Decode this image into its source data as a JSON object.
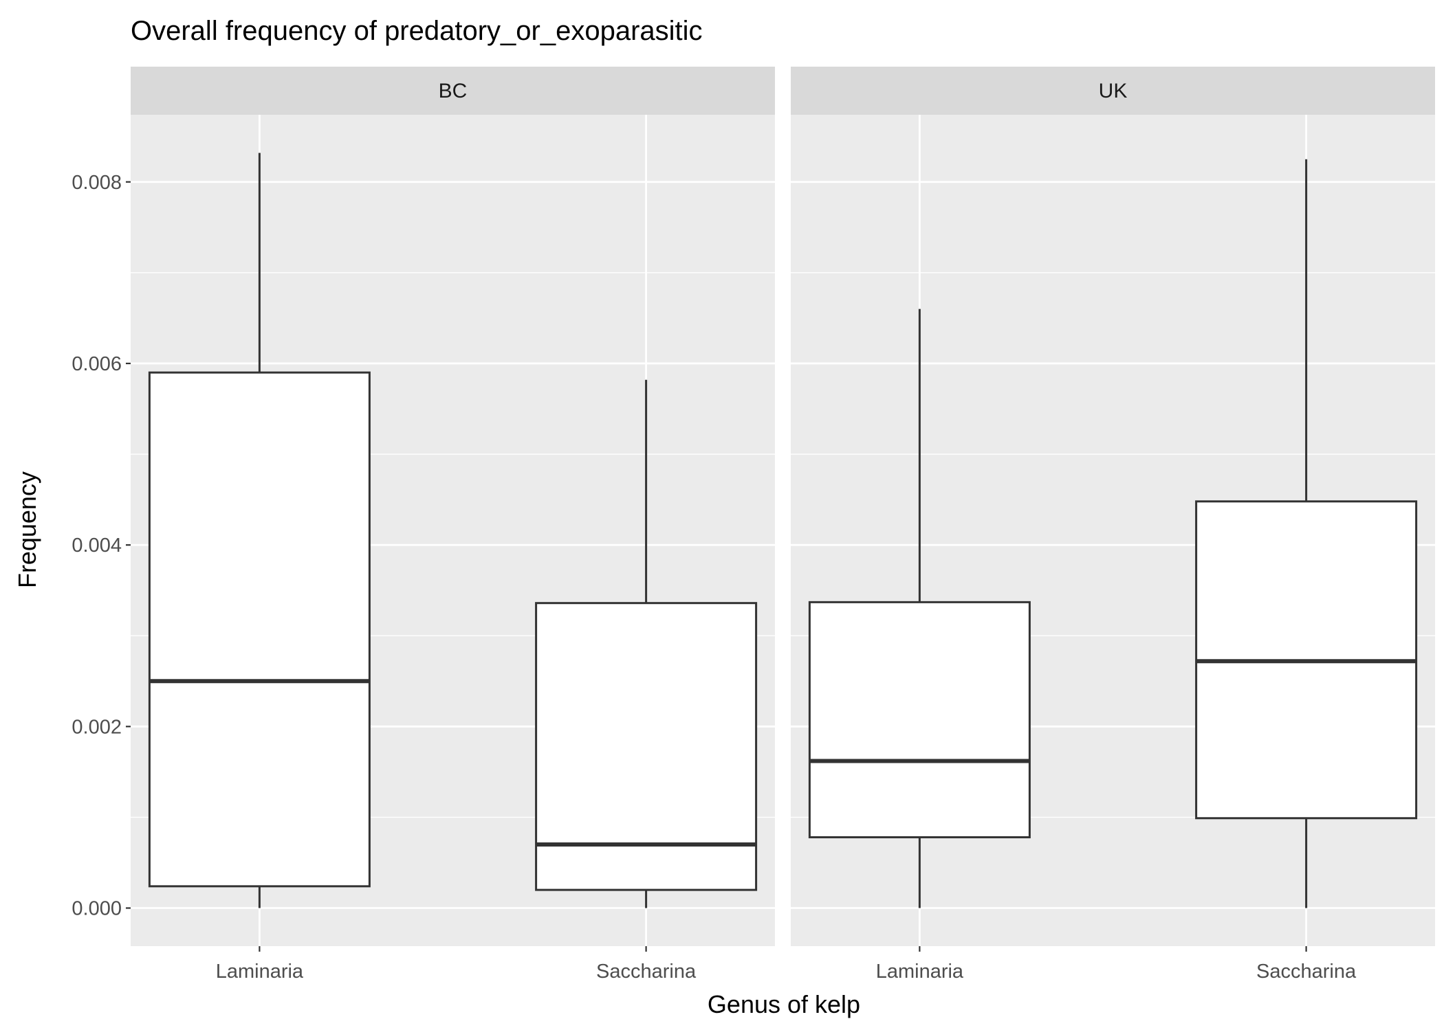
{
  "chart_data": {
    "type": "boxplot",
    "title": "Overall frequency of predatory_or_exoparasitic",
    "xlabel": "Genus of kelp",
    "ylabel": "Frequency",
    "ylim": [
      -0.00042,
      0.00874
    ],
    "y_ticks": [
      0,
      0.002,
      0.004,
      0.006,
      0.008
    ],
    "y_tick_labels": [
      "0.000",
      "0.002",
      "0.004",
      "0.006",
      "0.008"
    ],
    "categories": [
      "Laminaria",
      "Saccharina"
    ],
    "grid": true,
    "legend": "none",
    "facets": [
      {
        "label": "BC",
        "boxes": [
          {
            "category": "Laminaria",
            "min": 0.0,
            "q1": 0.00024,
            "median": 0.0025,
            "q3": 0.0059,
            "max": 0.00832
          },
          {
            "category": "Saccharina",
            "min": 0.0,
            "q1": 0.0002,
            "median": 0.0007,
            "q3": 0.00336,
            "max": 0.00582
          }
        ]
      },
      {
        "label": "UK",
        "boxes": [
          {
            "category": "Laminaria",
            "min": 0.0,
            "q1": 0.00078,
            "median": 0.00162,
            "q3": 0.00337,
            "max": 0.0066
          },
          {
            "category": "Saccharina",
            "min": 0.0,
            "q1": 0.00099,
            "median": 0.00272,
            "q3": 0.00448,
            "max": 0.00825
          }
        ]
      }
    ]
  },
  "colors": {
    "panel_background": "#ebebeb",
    "strip_background": "#d9d9d9",
    "grid": "#ffffff",
    "box_fill": "#ffffff",
    "box_line": "#333333",
    "tick_text": "#4d4d4d"
  }
}
